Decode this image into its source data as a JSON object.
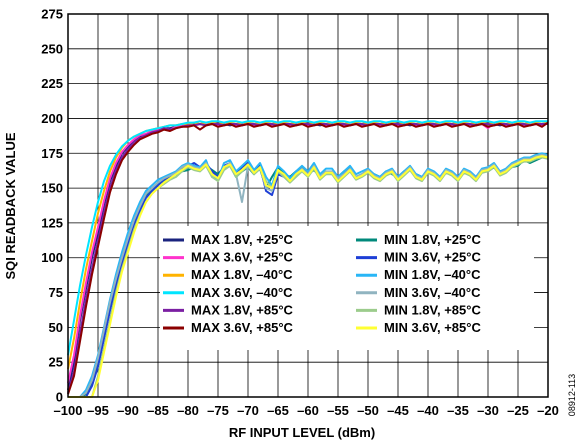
{
  "figure_id": "08912-113",
  "chart_data": {
    "type": "line",
    "title": "",
    "xlabel": "RF INPUT LEVEL (dBm)",
    "ylabel": "SQI READBACK VALUE",
    "xlim": [
      -100,
      -20
    ],
    "ylim": [
      0,
      275
    ],
    "x_ticks": [
      -100,
      -95,
      -90,
      -85,
      -80,
      -75,
      -70,
      -65,
      -60,
      -55,
      -50,
      -45,
      -40,
      -35,
      -30,
      -25,
      -20
    ],
    "x_tick_labels": [
      "–100",
      "–95",
      "–90",
      "–85",
      "–80",
      "–75",
      "–70",
      "–65",
      "–60",
      "–55",
      "–50",
      "–45",
      "–40",
      "–35",
      "–30",
      "–25",
      "–20"
    ],
    "y_ticks": [
      0,
      25,
      50,
      75,
      100,
      125,
      150,
      175,
      200,
      225,
      250,
      275
    ],
    "y_tick_labels": [
      "0",
      "25",
      "50",
      "75",
      "100",
      "125",
      "150",
      "175",
      "200",
      "225",
      "250",
      "275"
    ],
    "grid": true,
    "legend_position": "lower-center",
    "x": [
      -100,
      -99,
      -98,
      -97,
      -96,
      -95,
      -94,
      -93,
      -92,
      -91,
      -90,
      -89,
      -88,
      -87,
      -86,
      -85,
      -84,
      -83,
      -82,
      -81,
      -80,
      -79,
      -78,
      -77,
      -76,
      -75,
      -74,
      -73,
      -72,
      -71,
      -70,
      -69,
      -68,
      -67,
      -66,
      -65,
      -64,
      -63,
      -62,
      -61,
      -60,
      -59,
      -58,
      -57,
      -56,
      -55,
      -54,
      -53,
      -52,
      -51,
      -50,
      -49,
      -48,
      -47,
      -46,
      -45,
      -44,
      -43,
      -42,
      -41,
      -40,
      -39,
      -38,
      -37,
      -36,
      -35,
      -34,
      -33,
      -32,
      -31,
      -30,
      -29,
      -28,
      -27,
      -26,
      -25,
      -24,
      -23,
      -22,
      -21,
      -20
    ],
    "series": [
      {
        "name": "MAX 1.8V, +25°C",
        "color": "#1a237e",
        "values": [
          5,
          25,
          55,
          78,
          100,
          118,
          138,
          155,
          166,
          175,
          180,
          184,
          187,
          189,
          190,
          192,
          193,
          193,
          194,
          194,
          195,
          196,
          196,
          195,
          196,
          197,
          196,
          195,
          196,
          196,
          197,
          196,
          195,
          196,
          196,
          197,
          196,
          195,
          196,
          196,
          197,
          196,
          195,
          196,
          196,
          197,
          196,
          195,
          196,
          196,
          197,
          196,
          195,
          196,
          196,
          197,
          196,
          195,
          196,
          196,
          197,
          196,
          195,
          196,
          196,
          197,
          196,
          195,
          196,
          196,
          197,
          196,
          195,
          196,
          196,
          197,
          196,
          195,
          196,
          196,
          197
        ]
      },
      {
        "name": "MAX 3.6V, +25°C",
        "color": "#ff33cc",
        "values": [
          10,
          30,
          58,
          82,
          104,
          122,
          141,
          157,
          168,
          176,
          181,
          185,
          188,
          189,
          191,
          192,
          193,
          192,
          194,
          195,
          196,
          195,
          196,
          197,
          196,
          195,
          197,
          196,
          195,
          197,
          196,
          195,
          197,
          196,
          195,
          197,
          196,
          195,
          197,
          196,
          195,
          197,
          196,
          195,
          197,
          196,
          195,
          197,
          196,
          195,
          197,
          196,
          195,
          197,
          196,
          195,
          197,
          196,
          195,
          197,
          196,
          195,
          197,
          196,
          195,
          197,
          196,
          195,
          197,
          196,
          193,
          197,
          196,
          195,
          197,
          196,
          195,
          197,
          196,
          195,
          197
        ]
      },
      {
        "name": "MAX 1.8V, –40°C",
        "color": "#ffb300",
        "values": [
          20,
          42,
          68,
          92,
          112,
          132,
          148,
          162,
          172,
          179,
          184,
          187,
          189,
          191,
          192,
          193,
          194,
          195,
          195,
          196,
          196,
          197,
          196,
          197,
          197,
          196,
          197,
          197,
          196,
          197,
          197,
          196,
          197,
          197,
          196,
          197,
          197,
          196,
          197,
          197,
          196,
          197,
          197,
          196,
          197,
          197,
          196,
          197,
          197,
          196,
          197,
          197,
          196,
          197,
          197,
          196,
          197,
          197,
          196,
          197,
          197,
          196,
          197,
          197,
          196,
          197,
          197,
          196,
          197,
          197,
          196,
          197,
          197,
          196,
          197,
          197,
          196,
          197,
          197,
          196,
          197
        ]
      },
      {
        "name": "MAX 3.6V, –40°C",
        "color": "#00e5ff",
        "values": [
          30,
          55,
          80,
          102,
          122,
          140,
          155,
          166,
          174,
          180,
          184,
          187,
          189,
          191,
          192,
          193,
          194,
          195,
          195,
          196,
          197,
          197,
          198,
          197,
          198,
          198,
          197,
          198,
          198,
          197,
          198,
          198,
          197,
          198,
          198,
          197,
          198,
          198,
          197,
          198,
          198,
          197,
          198,
          198,
          197,
          198,
          198,
          197,
          198,
          198,
          197,
          198,
          198,
          197,
          198,
          198,
          197,
          198,
          198,
          197,
          198,
          198,
          197,
          198,
          198,
          197,
          198,
          198,
          197,
          198,
          198,
          197,
          198,
          198,
          197,
          198,
          198,
          197,
          198,
          198,
          198
        ]
      },
      {
        "name": "MAX 1.8V, +85°C",
        "color": "#7b1fa2",
        "values": [
          3,
          18,
          45,
          70,
          92,
          112,
          132,
          150,
          163,
          172,
          178,
          183,
          186,
          188,
          190,
          191,
          193,
          192,
          193,
          194,
          195,
          195,
          196,
          195,
          196,
          196,
          195,
          196,
          196,
          195,
          196,
          196,
          195,
          196,
          196,
          195,
          196,
          196,
          195,
          196,
          196,
          195,
          196,
          196,
          195,
          196,
          196,
          195,
          196,
          196,
          195,
          196,
          196,
          195,
          196,
          196,
          195,
          196,
          196,
          195,
          196,
          196,
          195,
          196,
          196,
          195,
          196,
          196,
          195,
          196,
          196,
          195,
          196,
          196,
          195,
          196,
          196,
          195,
          196,
          196,
          196
        ]
      },
      {
        "name": "MAX 3.6V, +85°C",
        "color": "#8b0000",
        "values": [
          2,
          15,
          40,
          65,
          88,
          108,
          128,
          147,
          160,
          170,
          176,
          181,
          185,
          187,
          189,
          190,
          192,
          191,
          193,
          194,
          194,
          195,
          192,
          195,
          196,
          194,
          195,
          196,
          194,
          195,
          196,
          194,
          195,
          196,
          194,
          195,
          196,
          194,
          195,
          196,
          194,
          195,
          196,
          194,
          195,
          196,
          194,
          195,
          196,
          194,
          195,
          196,
          194,
          195,
          196,
          194,
          195,
          196,
          194,
          195,
          196,
          194,
          195,
          196,
          194,
          195,
          196,
          194,
          195,
          196,
          194,
          195,
          196,
          194,
          195,
          196,
          194,
          195,
          196,
          194,
          197
        ]
      },
      {
        "name": "MIN 1.8V, +25°C",
        "color": "#00897b",
        "values": [
          0,
          0,
          0,
          2,
          10,
          25,
          45,
          65,
          82,
          98,
          112,
          125,
          135,
          145,
          150,
          153,
          155,
          158,
          160,
          162,
          163,
          165,
          164,
          166,
          163,
          160,
          165,
          166,
          158,
          162,
          165,
          160,
          164,
          150,
          158,
          165,
          160,
          158,
          162,
          165,
          160,
          163,
          158,
          162,
          160,
          158,
          162,
          165,
          158,
          160,
          163,
          160,
          158,
          162,
          160,
          158,
          162,
          163,
          160,
          158,
          162,
          160,
          158,
          163,
          160,
          158,
          162,
          160,
          158,
          163,
          162,
          165,
          160,
          162,
          165,
          166,
          170,
          168,
          170,
          172,
          172
        ]
      },
      {
        "name": "MIN 3.6V, +25°C",
        "color": "#1e3fd6",
        "values": [
          0,
          0,
          0,
          0,
          8,
          22,
          42,
          62,
          80,
          96,
          110,
          124,
          134,
          143,
          148,
          152,
          156,
          158,
          160,
          164,
          166,
          168,
          165,
          168,
          162,
          158,
          166,
          168,
          160,
          165,
          168,
          162,
          166,
          148,
          145,
          160,
          158,
          155,
          160,
          163,
          160,
          165,
          158,
          160,
          162,
          156,
          160,
          164,
          157,
          160,
          162,
          158,
          156,
          160,
          162,
          156,
          160,
          164,
          158,
          157,
          162,
          160,
          157,
          162,
          160,
          156,
          162,
          160,
          157,
          162,
          163,
          166,
          160,
          162,
          166,
          168,
          170,
          170,
          172,
          174,
          173
        ]
      },
      {
        "name": "MIN 1.8V, –40°C",
        "color": "#29b6f6",
        "values": [
          0,
          0,
          0,
          5,
          15,
          30,
          50,
          70,
          88,
          104,
          118,
          130,
          140,
          148,
          152,
          156,
          158,
          160,
          162,
          166,
          168,
          166,
          165,
          170,
          158,
          156,
          168,
          170,
          162,
          166,
          170,
          163,
          168,
          158,
          152,
          166,
          162,
          157,
          162,
          166,
          162,
          168,
          160,
          164,
          164,
          158,
          162,
          166,
          160,
          162,
          164,
          160,
          158,
          162,
          164,
          158,
          162,
          166,
          160,
          158,
          164,
          162,
          158,
          164,
          162,
          158,
          164,
          162,
          158,
          164,
          165,
          168,
          162,
          164,
          168,
          170,
          172,
          172,
          174,
          175,
          174
        ]
      },
      {
        "name": "MIN 3.6V, –40°C",
        "color": "#90b4c0",
        "values": [
          0,
          0,
          0,
          3,
          12,
          28,
          48,
          68,
          85,
          100,
          114,
          127,
          137,
          146,
          150,
          154,
          157,
          159,
          161,
          165,
          167,
          165,
          164,
          168,
          160,
          157,
          165,
          168,
          160,
          140,
          166,
          161,
          165,
          150,
          148,
          162,
          158,
          154,
          160,
          164,
          160,
          166,
          158,
          162,
          162,
          157,
          160,
          164,
          158,
          160,
          163,
          159,
          157,
          161,
          163,
          157,
          161,
          165,
          159,
          157,
          163,
          161,
          157,
          163,
          161,
          157,
          163,
          161,
          157,
          163,
          164,
          167,
          161,
          163,
          167,
          169,
          171,
          171,
          173,
          174,
          173
        ]
      },
      {
        "name": "MIN 1.8V, +85°C",
        "color": "#9ccc8c",
        "values": [
          0,
          0,
          0,
          0,
          0,
          15,
          35,
          55,
          75,
          92,
          106,
          120,
          131,
          140,
          146,
          150,
          153,
          156,
          158,
          162,
          165,
          163,
          162,
          166,
          158,
          155,
          163,
          166,
          158,
          162,
          166,
          160,
          164,
          155,
          150,
          162,
          158,
          154,
          158,
          162,
          158,
          164,
          156,
          160,
          160,
          154,
          158,
          162,
          156,
          158,
          161,
          157,
          155,
          159,
          161,
          155,
          159,
          163,
          157,
          155,
          161,
          159,
          155,
          161,
          159,
          155,
          161,
          159,
          155,
          161,
          162,
          165,
          159,
          161,
          165,
          167,
          169,
          169,
          171,
          172,
          171
        ]
      },
      {
        "name": "MIN 3.6V, +85°C",
        "color": "#ffff33",
        "values": [
          0,
          0,
          0,
          0,
          0,
          12,
          32,
          52,
          72,
          90,
          104,
          118,
          130,
          140,
          146,
          150,
          154,
          157,
          160,
          163,
          166,
          164,
          163,
          167,
          160,
          157,
          165,
          167,
          160,
          163,
          167,
          161,
          165,
          152,
          150,
          163,
          160,
          155,
          160,
          163,
          159,
          165,
          157,
          161,
          161,
          155,
          159,
          163,
          157,
          159,
          162,
          158,
          156,
          160,
          162,
          156,
          160,
          164,
          158,
          156,
          162,
          160,
          156,
          162,
          160,
          156,
          162,
          160,
          156,
          162,
          163,
          166,
          160,
          162,
          166,
          168,
          170,
          170,
          172,
          173,
          172
        ]
      }
    ]
  }
}
